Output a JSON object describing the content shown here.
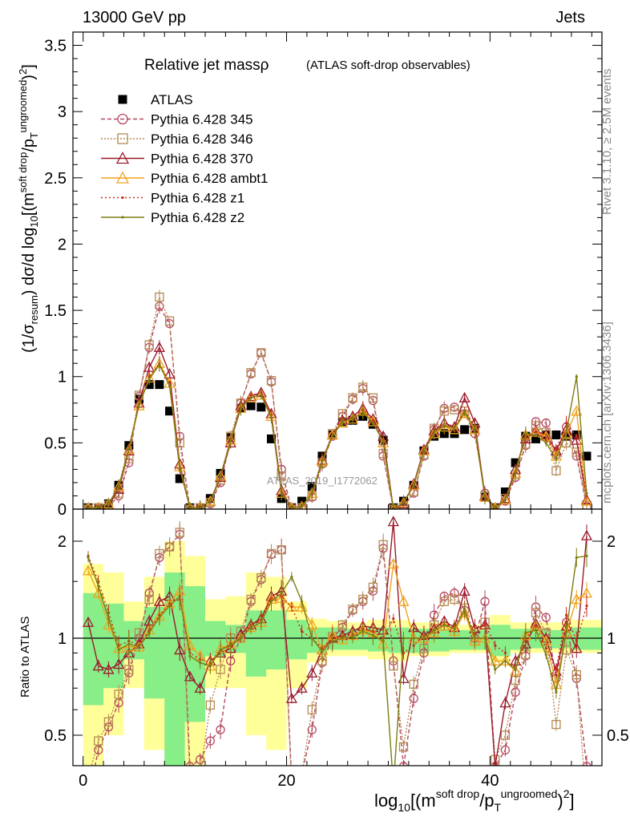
{
  "header": {
    "left_text": "13000 GeV pp",
    "right_text": "Jets"
  },
  "side_labels": {
    "rivet": "Rivet 3.1.10, ≥ 2.5M events",
    "mcplots": "mcplots.cern.ch [arXiv:1306.3436]"
  },
  "watermark": "ATLAS_2019_I1772062",
  "title": {
    "main": "Relative jet massρ",
    "sub": "(ATLAS soft-drop observables)"
  },
  "axes": {
    "main_ylabel": "(1/σ_resum) dσ/d log10[(m^soft drop/pT^ungroomed)^2]",
    "ratio_ylabel": "Ratio to ATLAS",
    "xlabel": "log10[(m^soft drop/pT^ungroomed)^2]"
  },
  "colors": {
    "ATLAS": "#000000",
    "Pythia 6.428 345": "#b5475e",
    "Pythia 6.428 346": "#b48a54",
    "Pythia 6.428 370": "#9a1a2c",
    "Pythia 6.428 ambt1": "#f0a21e",
    "Pythia 6.428 z1": "#cc2a1a",
    "Pythia 6.428 z2": "#7d7d10",
    "band_inner": "#88ee88",
    "band_outer": "#ffff99"
  },
  "chart_data": [
    {
      "type": "line",
      "panel": "main",
      "xlim": [
        -1,
        51
      ],
      "ylim": [
        0,
        3.6
      ],
      "y_ticks": [
        0,
        0.5,
        1,
        1.5,
        2,
        2.5,
        3,
        3.5
      ],
      "y_tick_labels": [
        "0",
        "0.5",
        "1",
        "1.5",
        "2",
        "2.5",
        "3",
        "3.5"
      ],
      "x": [
        0.5,
        1.5,
        2.5,
        3.5,
        4.5,
        5.5,
        6.5,
        7.5,
        8.5,
        9.5,
        10.5,
        11.5,
        12.5,
        13.5,
        14.5,
        15.5,
        16.5,
        17.5,
        18.5,
        19.5,
        20.5,
        21.5,
        22.5,
        23.5,
        24.5,
        25.5,
        26.5,
        27.5,
        28.5,
        29.5,
        30.5,
        31.5,
        32.5,
        33.5,
        34.5,
        35.5,
        36.5,
        37.5,
        38.5,
        39.5,
        40.5,
        41.5,
        42.5,
        43.5,
        44.5,
        45.5,
        46.5,
        47.5,
        48.5,
        49.5
      ],
      "series": [
        {
          "name": "ATLAS",
          "values": [
            0.01,
            0.01,
            0.04,
            0.18,
            0.48,
            0.83,
            0.94,
            0.94,
            0.74,
            0.23,
            0.01,
            0.01,
            0.08,
            0.27,
            0.54,
            0.76,
            0.78,
            0.77,
            0.53,
            0.08,
            0.01,
            0.06,
            0.17,
            0.4,
            0.56,
            0.66,
            0.67,
            0.7,
            0.64,
            0.52,
            0.01,
            0.06,
            0.18,
            0.44,
            0.55,
            0.57,
            0.57,
            0.6,
            0.61,
            0.09,
            0.01,
            0.13,
            0.35,
            0.55,
            0.53,
            0.56,
            0.56,
            0.55,
            0.56,
            0.4
          ]
        },
        {
          "name": "Pythia 6.428 345",
          "values": [
            0.0,
            0.01,
            0.02,
            0.1,
            0.35,
            0.85,
            1.22,
            1.53,
            1.4,
            0.55,
            0.0,
            0.01,
            0.04,
            0.2,
            0.52,
            0.8,
            1.02,
            1.18,
            0.96,
            0.3,
            0.0,
            0.01,
            0.09,
            0.34,
            0.55,
            0.7,
            0.83,
            0.91,
            0.82,
            0.4,
            0.0,
            0.02,
            0.12,
            0.4,
            0.6,
            0.76,
            0.77,
            0.72,
            0.57,
            0.12,
            0.0,
            0.06,
            0.24,
            0.48,
            0.66,
            0.65,
            0.41,
            0.62,
            0.4,
            0.02
          ]
        },
        {
          "name": "Pythia 6.428 346",
          "values": [
            0.0,
            0.01,
            0.03,
            0.12,
            0.38,
            0.86,
            1.24,
            1.6,
            1.42,
            0.5,
            0.0,
            0.01,
            0.05,
            0.22,
            0.55,
            0.8,
            1.03,
            1.18,
            0.97,
            0.25,
            0.0,
            0.01,
            0.1,
            0.35,
            0.57,
            0.72,
            0.84,
            0.92,
            0.84,
            0.42,
            0.0,
            0.02,
            0.13,
            0.41,
            0.61,
            0.74,
            0.75,
            0.74,
            0.6,
            0.1,
            0.0,
            0.08,
            0.26,
            0.49,
            0.63,
            0.58,
            0.29,
            0.5,
            0.43,
            0.03
          ]
        },
        {
          "name": "Pythia 6.428 370",
          "values": [
            0.01,
            0.01,
            0.03,
            0.15,
            0.44,
            0.8,
            1.07,
            1.22,
            1.02,
            0.34,
            0.01,
            0.01,
            0.06,
            0.24,
            0.5,
            0.78,
            0.85,
            0.88,
            0.72,
            0.14,
            0.01,
            0.02,
            0.12,
            0.37,
            0.56,
            0.67,
            0.7,
            0.76,
            0.68,
            0.55,
            0.0,
            0.04,
            0.19,
            0.45,
            0.59,
            0.65,
            0.62,
            0.84,
            0.65,
            0.1,
            0.01,
            0.08,
            0.3,
            0.53,
            0.59,
            0.56,
            0.44,
            0.6,
            0.52,
            0.07
          ]
        },
        {
          "name": "Pythia 6.428 ambt1",
          "values": [
            0.01,
            0.01,
            0.04,
            0.17,
            0.45,
            0.78,
            0.99,
            1.1,
            0.95,
            0.32,
            0.01,
            0.01,
            0.06,
            0.25,
            0.52,
            0.76,
            0.84,
            0.86,
            0.7,
            0.12,
            0.01,
            0.02,
            0.12,
            0.36,
            0.56,
            0.65,
            0.68,
            0.74,
            0.66,
            0.5,
            0.0,
            0.05,
            0.18,
            0.44,
            0.57,
            0.62,
            0.6,
            0.72,
            0.6,
            0.09,
            0.01,
            0.07,
            0.27,
            0.56,
            0.58,
            0.55,
            0.4,
            0.57,
            0.74,
            0.06
          ]
        },
        {
          "name": "Pythia 6.428 z1",
          "values": [
            0.01,
            0.01,
            0.04,
            0.17,
            0.47,
            0.79,
            1.0,
            1.1,
            0.95,
            0.3,
            0.01,
            0.01,
            0.06,
            0.25,
            0.52,
            0.77,
            0.86,
            0.88,
            0.71,
            0.13,
            0.01,
            0.02,
            0.12,
            0.37,
            0.56,
            0.67,
            0.69,
            0.75,
            0.67,
            0.52,
            0.0,
            0.05,
            0.19,
            0.45,
            0.6,
            0.63,
            0.62,
            0.74,
            0.63,
            0.1,
            0.01,
            0.07,
            0.28,
            0.55,
            0.58,
            0.52,
            0.45,
            0.65,
            0.55,
            0.1
          ]
        },
        {
          "name": "Pythia 6.428 z2",
          "values": [
            0.01,
            0.01,
            0.04,
            0.17,
            0.46,
            0.79,
            0.98,
            1.09,
            0.93,
            0.31,
            0.01,
            0.01,
            0.06,
            0.25,
            0.51,
            0.76,
            0.84,
            0.86,
            0.69,
            0.12,
            0.01,
            0.02,
            0.12,
            0.36,
            0.55,
            0.66,
            0.68,
            0.73,
            0.65,
            0.51,
            0.0,
            0.05,
            0.18,
            0.44,
            0.58,
            0.63,
            0.61,
            0.73,
            0.61,
            0.09,
            0.01,
            0.07,
            0.28,
            0.57,
            0.56,
            0.5,
            0.38,
            0.58,
            1.0,
            0.12
          ]
        }
      ]
    },
    {
      "type": "line",
      "panel": "ratio",
      "xlim": [
        -1,
        51
      ],
      "ylim": [
        0.35,
        2.3
      ],
      "y_ticks": [
        0.5,
        1,
        2
      ],
      "y_tick_labels": [
        "0.5",
        "1",
        "2"
      ],
      "x_ticks": [
        0,
        20,
        40
      ],
      "x_tick_labels": [
        "0",
        "20",
        "40"
      ],
      "reference_line": 1,
      "band_inner": {
        "x": [
          0,
          2,
          4,
          6,
          8,
          10,
          12,
          14,
          16,
          18,
          20,
          22,
          24,
          26,
          28,
          30,
          32,
          34,
          36,
          38,
          40,
          42,
          44,
          46,
          48,
          50
        ],
        "low": [
          0.62,
          0.7,
          0.86,
          0.65,
          0.4,
          0.55,
          0.88,
          0.9,
          0.76,
          0.8,
          0.86,
          0.9,
          0.92,
          0.92,
          0.91,
          0.9,
          0.9,
          0.91,
          0.92,
          0.92,
          0.88,
          0.92,
          0.93,
          0.93,
          0.92,
          0.92
        ],
        "high": [
          1.38,
          1.28,
          1.13,
          1.25,
          1.6,
          1.45,
          1.13,
          1.1,
          1.22,
          1.22,
          1.14,
          1.08,
          1.08,
          1.07,
          1.08,
          1.08,
          1.07,
          1.07,
          1.06,
          1.06,
          1.1,
          1.07,
          1.07,
          1.06,
          1.08,
          1.08
        ]
      },
      "band_outer": {
        "x": [
          0,
          2,
          4,
          6,
          8,
          10,
          12,
          14,
          16,
          18,
          20,
          22,
          24,
          26,
          28,
          30,
          32,
          34,
          36,
          38,
          40,
          42,
          44,
          46,
          48,
          50
        ],
        "low": [
          0.35,
          0.5,
          0.7,
          0.45,
          0.35,
          0.35,
          0.7,
          0.7,
          0.5,
          0.45,
          0.7,
          0.84,
          0.88,
          0.88,
          0.86,
          0.85,
          0.88,
          0.88,
          0.9,
          0.9,
          0.84,
          0.9,
          0.9,
          0.9,
          0.9,
          0.9
        ],
        "high": [
          1.7,
          1.6,
          1.3,
          1.55,
          2.0,
          1.8,
          1.32,
          1.35,
          1.6,
          1.55,
          1.3,
          1.15,
          1.13,
          1.12,
          1.14,
          1.14,
          1.12,
          1.12,
          1.1,
          1.1,
          1.18,
          1.12,
          1.12,
          1.12,
          1.14,
          1.14
        ]
      },
      "series": [
        {
          "name": "Pythia 6.428 345",
          "values": [
            0.32,
            0.45,
            0.53,
            0.63,
            0.78,
            1.0,
            1.38,
            1.78,
            1.92,
            2.1,
            0.4,
            0.42,
            0.48,
            0.52,
            0.85,
            1.0,
            1.3,
            1.52,
            1.82,
            1.88,
            0.36,
            0.38,
            0.52,
            0.84,
            1.0,
            1.08,
            1.22,
            1.3,
            1.4,
            1.9,
            0.85,
            0.4,
            0.65,
            0.9,
            1.18,
            1.35,
            1.38,
            1.22,
            1.0,
            1.3,
            0.4,
            0.45,
            0.68,
            0.88,
            1.25,
            1.16,
            0.75,
            1.12,
            0.75,
            0.4
          ]
        },
        {
          "name": "Pythia 6.428 346",
          "values": [
            0.37,
            0.48,
            0.55,
            0.67,
            0.8,
            1.04,
            1.32,
            1.83,
            1.92,
            2.13,
            0.36,
            0.38,
            0.62,
            0.8,
            1.0,
            1.05,
            1.32,
            1.54,
            1.83,
            1.88,
            0.34,
            0.38,
            0.6,
            0.85,
            1.01,
            1.1,
            1.23,
            1.32,
            1.44,
            1.95,
            0.82,
            0.46,
            0.72,
            0.93,
            1.1,
            1.3,
            1.32,
            1.24,
            0.98,
            1.12,
            0.42,
            0.5,
            0.74,
            0.89,
            1.2,
            1.04,
            0.54,
            0.92,
            0.77,
            0.3
          ]
        },
        {
          "name": "Pythia 6.428 370",
          "values": [
            1.12,
            0.82,
            0.8,
            0.83,
            0.9,
            0.96,
            1.13,
            1.3,
            1.35,
            0.92,
            0.76,
            0.7,
            0.85,
            0.9,
            0.93,
            1.03,
            1.1,
            1.15,
            1.35,
            1.4,
            0.65,
            0.7,
            0.78,
            0.92,
            1.0,
            1.02,
            1.05,
            1.09,
            1.08,
            1.06,
            2.3,
            0.75,
            1.08,
            1.02,
            1.07,
            1.13,
            1.08,
            1.4,
            1.07,
            1.1,
            0.4,
            0.63,
            0.85,
            0.96,
            1.11,
            1.0,
            0.79,
            1.09,
            0.93,
            2.08
          ]
        },
        {
          "name": "Pythia 6.428 ambt1",
          "values": [
            1.62,
            1.38,
            1.1,
            0.93,
            0.94,
            0.94,
            1.06,
            1.17,
            1.28,
            1.4,
            0.95,
            0.88,
            0.82,
            0.93,
            0.96,
            1.0,
            1.08,
            1.12,
            1.32,
            1.33,
            1.25,
            1.25,
            1.1,
            0.92,
            1.02,
            0.99,
            1.02,
            1.06,
            1.04,
            0.96,
            1.7,
            1.3,
            1.0,
            1.0,
            1.04,
            1.09,
            1.05,
            1.2,
            0.98,
            1.0,
            0.85,
            0.85,
            0.79,
            1.02,
            1.09,
            0.98,
            0.72,
            1.04,
            1.32,
            1.38
          ]
        },
        {
          "name": "Pythia 6.428 z1",
          "values": [
            1.8,
            1.5,
            1.2,
            0.95,
            0.98,
            0.95,
            1.06,
            1.18,
            1.28,
            1.32,
            0.9,
            0.86,
            0.84,
            0.92,
            0.96,
            1.0,
            1.1,
            1.14,
            1.33,
            1.35,
            1.25,
            1.05,
            1.0,
            0.93,
            1.0,
            1.01,
            1.03,
            1.07,
            1.05,
            1.0,
            1.15,
            0.9,
            0.95,
            1.02,
            1.1,
            1.1,
            1.09,
            1.23,
            1.03,
            1.11,
            0.95,
            0.9,
            0.8,
            1.0,
            1.09,
            0.93,
            0.8,
            1.18,
            0.98,
            1.26
          ]
        },
        {
          "name": "Pythia 6.428 z2",
          "values": [
            1.78,
            1.45,
            1.15,
            0.92,
            0.96,
            0.94,
            1.04,
            1.16,
            1.26,
            1.35,
            0.88,
            0.84,
            0.82,
            0.92,
            0.95,
            1.0,
            1.08,
            1.12,
            1.3,
            1.38,
            1.55,
            1.3,
            1.0,
            0.91,
            0.98,
            1.0,
            1.01,
            1.05,
            1.02,
            0.98,
            0.35,
            1.0,
            1.0,
            1.0,
            1.06,
            1.1,
            1.07,
            1.22,
            1.0,
            1.0,
            0.8,
            0.85,
            0.8,
            1.04,
            1.06,
            0.89,
            0.68,
            1.05,
            1.78,
            1.8
          ]
        }
      ]
    }
  ]
}
